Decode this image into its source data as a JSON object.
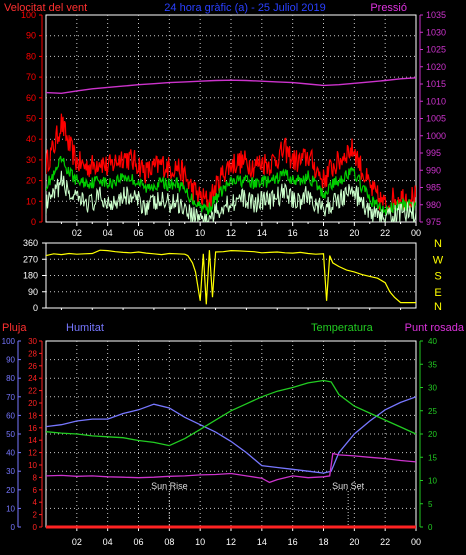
{
  "header": {
    "wind_title": "Velocitat del vent",
    "center_title": "24 hora gràfic (a) - 25 Juliol 2019",
    "pressure_title": "Pressió"
  },
  "colors": {
    "background": "#000000",
    "axis": "#ffffff",
    "grid": "#c8c8c8",
    "wind_gust": "#ff0000",
    "wind_avg": "#00cc00",
    "wind_min": "#ccffcc",
    "pressure": "#cc33cc",
    "direction": "#ffff00",
    "rain": "#ff2222",
    "humidity": "#7777ff",
    "temperature": "#22cc22",
    "dewpoint": "#cc33cc"
  },
  "chart_data": [
    {
      "type": "line",
      "id": "wind_pressure",
      "title": "Velocitat del vent",
      "y_left_label": "Velocitat del vent",
      "y_right_label": "Pressió",
      "x_ticks": [
        "02",
        "04",
        "06",
        "08",
        "10",
        "12",
        "14",
        "16",
        "18",
        "20",
        "22",
        "00"
      ],
      "y_left_ticks": [
        0,
        10,
        20,
        30,
        40,
        50,
        60,
        70,
        80,
        90,
        100
      ],
      "y_right_ticks": [
        975,
        980,
        985,
        990,
        995,
        1000,
        1005,
        1010,
        1015,
        1020,
        1025,
        1030,
        1035
      ],
      "ylim_left": [
        0,
        100
      ],
      "ylim_right": [
        975,
        1035
      ],
      "xlim": [
        0,
        24
      ],
      "grid": true,
      "series": [
        {
          "key": "gust",
          "axis": "left",
          "x": [
            0,
            0.5,
            1,
            1.5,
            2,
            2.5,
            3,
            3.5,
            4,
            4.5,
            5,
            5.5,
            6,
            6.5,
            7,
            7.5,
            8,
            8.5,
            9,
            9.5,
            10,
            10.5,
            11,
            11.5,
            12,
            12.5,
            13,
            13.5,
            14,
            14.5,
            15,
            15.5,
            16,
            16.5,
            17,
            17.5,
            18,
            18.5,
            19,
            19.5,
            20,
            20.5,
            21,
            21.5,
            22,
            22.5,
            23,
            23.5,
            24
          ],
          "values": [
            28,
            36,
            48,
            37,
            29,
            27,
            27,
            30,
            26,
            29,
            32,
            30,
            28,
            24,
            26,
            28,
            26,
            27,
            22,
            16,
            12,
            10,
            16,
            24,
            28,
            29,
            29,
            27,
            29,
            28,
            31,
            35,
            30,
            29,
            32,
            26,
            20,
            26,
            29,
            34,
            35,
            25,
            17,
            12,
            8,
            11,
            12,
            12,
            12
          ]
        },
        {
          "key": "average",
          "axis": "left",
          "x": [
            0,
            0.5,
            1,
            1.5,
            2,
            2.5,
            3,
            3.5,
            4,
            4.5,
            5,
            5.5,
            6,
            6.5,
            7,
            7.5,
            8,
            8.5,
            9,
            9.5,
            10,
            10.5,
            11,
            11.5,
            12,
            12.5,
            13,
            13.5,
            14,
            14.5,
            15,
            15.5,
            16,
            16.5,
            17,
            17.5,
            18,
            18.5,
            19,
            19.5,
            20,
            20.5,
            21,
            21.5,
            22,
            22.5,
            23,
            23.5,
            24
          ],
          "values": [
            18,
            22,
            30,
            24,
            20,
            19,
            19,
            21,
            18,
            20,
            22,
            21,
            19,
            16,
            18,
            19,
            18,
            19,
            15,
            11,
            8,
            6,
            11,
            16,
            19,
            20,
            20,
            18,
            20,
            19,
            21,
            24,
            20,
            20,
            22,
            18,
            13,
            18,
            20,
            23,
            24,
            17,
            11,
            8,
            5,
            7,
            8,
            8,
            8
          ]
        },
        {
          "key": "min",
          "axis": "left",
          "x": [
            0,
            0.5,
            1,
            1.5,
            2,
            2.5,
            3,
            3.5,
            4,
            4.5,
            5,
            5.5,
            6,
            6.5,
            7,
            7.5,
            8,
            8.5,
            9,
            9.5,
            10,
            10.5,
            11,
            11.5,
            12,
            12.5,
            13,
            13.5,
            14,
            14.5,
            15,
            15.5,
            16,
            16.5,
            17,
            17.5,
            18,
            18.5,
            19,
            19.5,
            20,
            20.5,
            21,
            21.5,
            22,
            22.5,
            23,
            23.5,
            24
          ],
          "values": [
            8,
            12,
            20,
            14,
            10,
            10,
            9,
            12,
            9,
            11,
            13,
            12,
            10,
            8,
            9,
            10,
            9,
            10,
            7,
            4,
            2,
            1,
            4,
            8,
            10,
            11,
            11,
            9,
            11,
            10,
            12,
            15,
            11,
            11,
            13,
            9,
            5,
            9,
            11,
            14,
            15,
            9,
            4,
            2,
            1,
            3,
            4,
            5,
            5
          ]
        },
        {
          "key": "pressure",
          "axis": "right",
          "x": [
            0,
            1,
            2,
            3,
            4,
            5,
            6,
            7,
            8,
            9,
            10,
            11,
            12,
            13,
            14,
            15,
            16,
            17,
            18,
            19,
            20,
            21,
            22,
            23,
            24
          ],
          "values": [
            1012.5,
            1012.3,
            1013.0,
            1013.6,
            1014.0,
            1014.4,
            1014.8,
            1015.1,
            1015.4,
            1015.6,
            1015.8,
            1016.0,
            1016.1,
            1016.0,
            1015.8,
            1015.6,
            1015.4,
            1015.0,
            1014.6,
            1014.8,
            1015.2,
            1015.6,
            1016.0,
            1016.5,
            1016.8
          ]
        }
      ]
    },
    {
      "type": "line",
      "id": "direction",
      "y_ticks": [
        0,
        90,
        180,
        270,
        360
      ],
      "y_right_labels": [
        "N",
        "W",
        "S",
        "E",
        "N"
      ],
      "ylim": [
        0,
        360
      ],
      "xlim": [
        0,
        24
      ],
      "grid": true,
      "series": [
        {
          "key": "direction",
          "x": [
            0,
            0.5,
            1,
            1.5,
            2,
            2.5,
            3,
            3.5,
            4,
            4.5,
            5,
            5.5,
            6,
            6.5,
            7,
            7.5,
            8,
            8.5,
            9,
            9.2,
            9.5,
            9.7,
            10,
            10.2,
            10.4,
            10.6,
            10.8,
            11,
            11.5,
            12,
            12.5,
            13,
            13.5,
            14,
            14.5,
            15,
            15.5,
            16,
            16.5,
            17,
            17.5,
            18,
            18.2,
            18.4,
            18.6,
            19,
            19.5,
            20,
            20.5,
            21,
            21.5,
            22,
            22.3,
            22.6,
            23,
            23.5,
            24
          ],
          "values": [
            290,
            300,
            296,
            302,
            298,
            300,
            302,
            320,
            318,
            312,
            308,
            306,
            310,
            304,
            300,
            296,
            302,
            300,
            298,
            290,
            250,
            200,
            40,
            300,
            20,
            320,
            60,
            310,
            312,
            318,
            316,
            314,
            312,
            306,
            308,
            310,
            306,
            304,
            308,
            302,
            298,
            300,
            40,
            290,
            250,
            230,
            210,
            200,
            185,
            175,
            165,
            140,
            90,
            60,
            30,
            30,
            30
          ]
        }
      ]
    },
    {
      "type": "line",
      "id": "humidity_temperature",
      "left_labels": [
        "Pluja",
        "Humitat"
      ],
      "right_labels": [
        "Temperatura",
        "Punt rosada"
      ],
      "y_humidity_ticks": [
        0,
        10,
        20,
        30,
        40,
        50,
        60,
        70,
        80,
        90,
        100
      ],
      "y_rain_ticks": [
        0,
        2,
        4,
        6,
        8,
        10,
        12,
        14,
        16,
        18,
        20,
        22,
        24,
        26,
        28,
        30
      ],
      "y_temp_ticks": [
        0,
        5,
        10,
        15,
        20,
        25,
        30,
        35,
        40
      ],
      "ylim_humidity": [
        0,
        100
      ],
      "ylim_temp": [
        0,
        40
      ],
      "xlim": [
        0,
        24
      ],
      "grid": true,
      "annotations": [
        {
          "text": "Sun Rise",
          "x": 8.0
        },
        {
          "text": "Sun Set",
          "x": 19.6
        }
      ],
      "series": [
        {
          "key": "humidity",
          "axis": "humidity",
          "x": [
            0,
            1,
            2,
            3,
            4,
            5,
            6,
            7,
            8,
            9,
            10,
            11,
            12,
            13,
            14,
            15,
            16,
            17,
            18,
            18.5,
            19,
            20,
            21,
            22,
            23,
            24
          ],
          "values": [
            54,
            55,
            57,
            58,
            58,
            61,
            63,
            66,
            64,
            59,
            55,
            51,
            46,
            40,
            33,
            32,
            31,
            30,
            29,
            30,
            40,
            50,
            57,
            63,
            67,
            70
          ]
        },
        {
          "key": "temperature",
          "axis": "temp",
          "x": [
            0,
            1,
            2,
            3,
            4,
            5,
            6,
            7,
            8,
            9,
            10,
            11,
            12,
            13,
            14,
            15,
            16,
            17,
            18,
            18.5,
            19,
            20,
            21,
            22,
            23,
            24
          ],
          "values": [
            20.5,
            20.2,
            20.0,
            19.6,
            19.4,
            19.2,
            18.6,
            18.2,
            17.5,
            19.0,
            21.0,
            23.0,
            25.0,
            26.5,
            28.0,
            29.2,
            30.0,
            31.0,
            31.5,
            31.2,
            28.5,
            26.0,
            24.5,
            23.0,
            21.5,
            20.0
          ]
        },
        {
          "key": "dewpoint",
          "axis": "temp",
          "x": [
            0,
            1,
            2,
            3,
            4,
            5,
            6,
            7,
            8,
            9,
            10,
            11,
            12,
            13,
            14,
            14.5,
            15,
            16,
            17,
            18,
            18.4,
            18.6,
            19,
            20,
            21,
            22,
            23,
            24
          ],
          "values": [
            11.0,
            11.1,
            10.9,
            11.0,
            10.8,
            10.7,
            10.6,
            10.7,
            10.9,
            11.0,
            11.2,
            11.3,
            11.5,
            11.0,
            10.5,
            9.6,
            10.2,
            11.0,
            10.6,
            10.8,
            11.0,
            15.8,
            15.5,
            15.3,
            15.0,
            14.7,
            14.3,
            14.0
          ]
        },
        {
          "key": "rain",
          "axis": "humidity",
          "x": [
            0,
            24
          ],
          "values": [
            0,
            0
          ]
        }
      ]
    }
  ]
}
